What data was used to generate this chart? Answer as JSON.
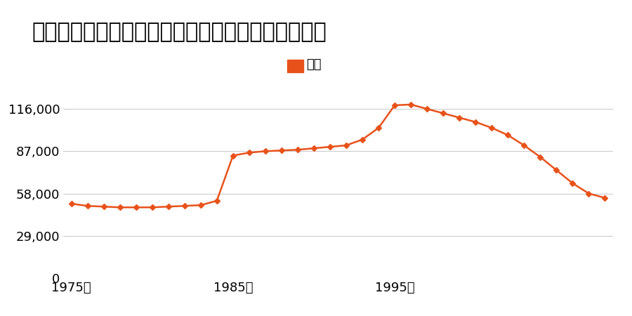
{
  "title": "群馬県佐波郡境町大字境字町並４２６番の地価推移",
  "legend_label": "価格",
  "line_color": "#e8521a",
  "marker_color": "#e8521a",
  "background_color": "#ffffff",
  "years": [
    1975,
    1976,
    1977,
    1978,
    1979,
    1980,
    1981,
    1982,
    1983,
    1984,
    1985,
    1986,
    1987,
    1988,
    1989,
    1990,
    1991,
    1992,
    1993,
    1994,
    1995,
    1996,
    1997,
    1998,
    1999,
    2000,
    2001,
    2002,
    2003,
    2004,
    2005,
    2006,
    2007,
    2008
  ],
  "values": [
    51000,
    49500,
    49000,
    48500,
    48500,
    48500,
    49000,
    49500,
    50000,
    53000,
    84000,
    86000,
    87000,
    87500,
    88000,
    89000,
    90000,
    91000,
    95000,
    103000,
    118500,
    119000,
    116000,
    113000,
    110000,
    107000,
    103000,
    98000,
    91000,
    83000,
    74000,
    65000,
    58000,
    55000
  ],
  "ylim": [
    0,
    130000
  ],
  "yticks": [
    0,
    29000,
    58000,
    87000,
    116000
  ],
  "xtick_years": [
    1975,
    1985,
    1995
  ],
  "grid_color": "#cccccc",
  "title_fontsize": 22,
  "legend_fontsize": 13,
  "tick_fontsize": 13
}
